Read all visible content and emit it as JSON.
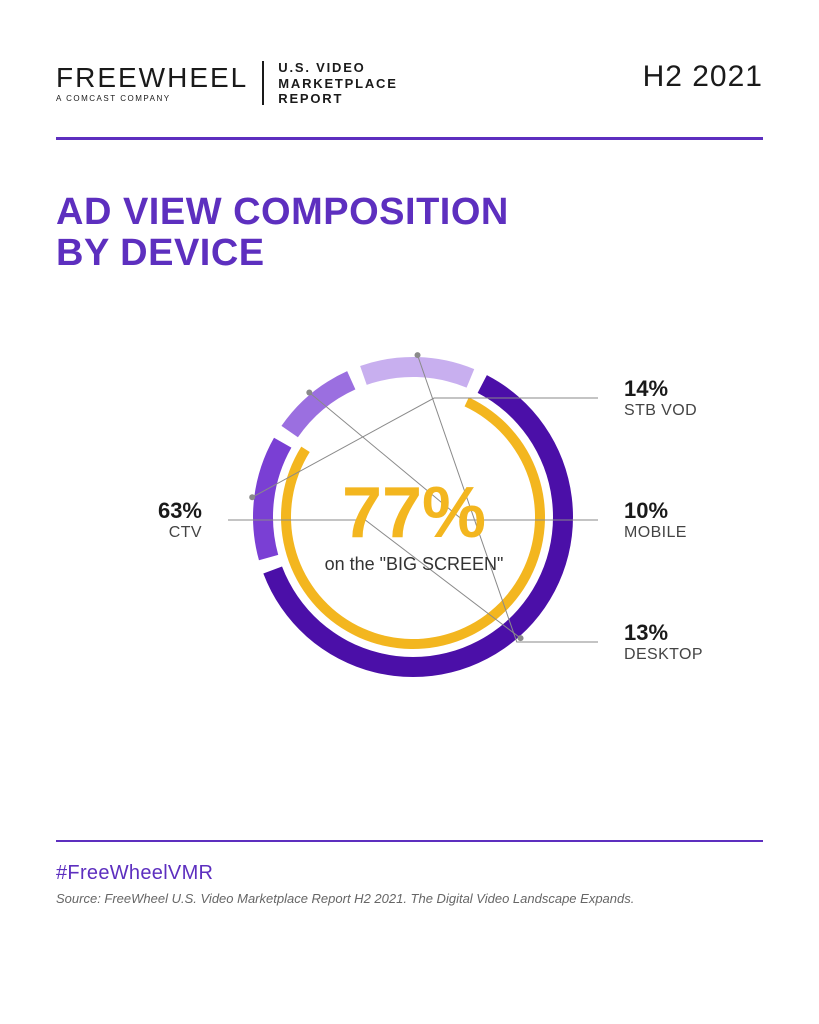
{
  "header": {
    "logo_name": "FREEWHEEL",
    "logo_tagline": "A COMCAST COMPANY",
    "report_line1": "U.S. VIDEO",
    "report_line2": "MARKETPLACE",
    "report_line3": "REPORT",
    "period": "H2 2021"
  },
  "title": {
    "line1": "AD VIEW COMPOSITION",
    "line2": "BY DEVICE",
    "color": "#5d2fbf"
  },
  "chart": {
    "type": "donut",
    "segments": [
      {
        "key": "ctv",
        "label": "CTV",
        "value": 63,
        "percent_text": "63%",
        "color": "#4b0fa8"
      },
      {
        "key": "stbvod",
        "label": "STB VOD",
        "value": 14,
        "percent_text": "14%",
        "color": "#7a3fd4"
      },
      {
        "key": "mobile",
        "label": "MOBILE",
        "value": 10,
        "percent_text": "10%",
        "color": "#9b6fe0"
      },
      {
        "key": "desktop",
        "label": "DESKTOP",
        "value": 13,
        "percent_text": "13%",
        "color": "#c8afef"
      }
    ],
    "inner_ring": {
      "color": "#f3b61f",
      "percent_of_circle": 77,
      "stroke_width": 10
    },
    "outer_stroke_width": 20,
    "gap_degrees": 5,
    "start_angle_deg": 25,
    "center_value": "77%",
    "center_caption": "on the \"BIG SCREEN\"",
    "center_value_color": "#f3b61f",
    "radius_outer": 160,
    "radius_inner_ring": 132,
    "leader_color": "#8a8a8a"
  },
  "rules": {
    "hr_color": "#5d2fbf"
  },
  "footer": {
    "hashtag": "#FreeWheelVMR",
    "hashtag_color": "#5d2fbf",
    "source": "Source: FreeWheel U.S. Video Marketplace Report H2 2021. The Digital Video Landscape Expands."
  }
}
